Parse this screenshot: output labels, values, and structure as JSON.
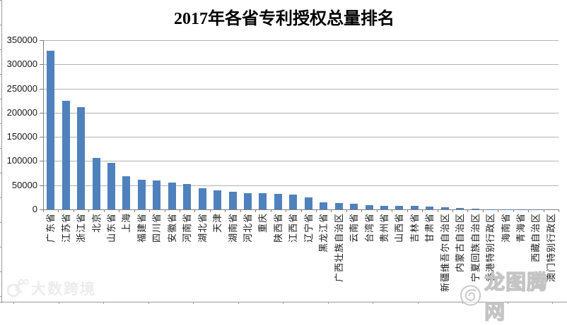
{
  "chart_data": {
    "type": "bar",
    "title": "2017年各省专利授权总量排名",
    "categories": [
      "广东省",
      "江苏省",
      "浙江省",
      "北京",
      "山东省",
      "上海",
      "福建省",
      "四川省",
      "安徽省",
      "河南省",
      "湖北省",
      "天津",
      "湖南省",
      "河北省",
      "重庆",
      "陕西省",
      "江西省",
      "辽宁省",
      "黑龙江省",
      "广西壮族自治区",
      "云南省",
      "台湾省",
      "贵州省",
      "山西省",
      "吉林省",
      "甘肃省",
      "新疆维吾尔自治区",
      "内蒙古自治区",
      "宁夏回族自治区",
      "香港特别行政区",
      "海南省",
      "青海省",
      "西藏自治区",
      "澳门特别行政区"
    ],
    "values": [
      328000,
      224000,
      211000,
      106000,
      96000,
      69000,
      62000,
      60000,
      56000,
      53000,
      44000,
      39000,
      36000,
      34000,
      33000,
      32500,
      31000,
      24500,
      15000,
      12500,
      12000,
      9500,
      8000,
      7500,
      7000,
      5500,
      4000,
      2500,
      1500,
      700,
      300,
      200,
      100,
      30
    ],
    "xlabel": "",
    "ylabel": "",
    "ylim": [
      0,
      350000
    ],
    "ytick_step": 50000,
    "grid": true,
    "legend": false,
    "bar_color": "#4F81BD",
    "gridline_color": "#b3b3b3",
    "axis_color": "#808080",
    "label_color": "#1a1a1a"
  },
  "watermarks": {
    "left_text": "大数跨境",
    "right_text": "龙图腾网"
  }
}
